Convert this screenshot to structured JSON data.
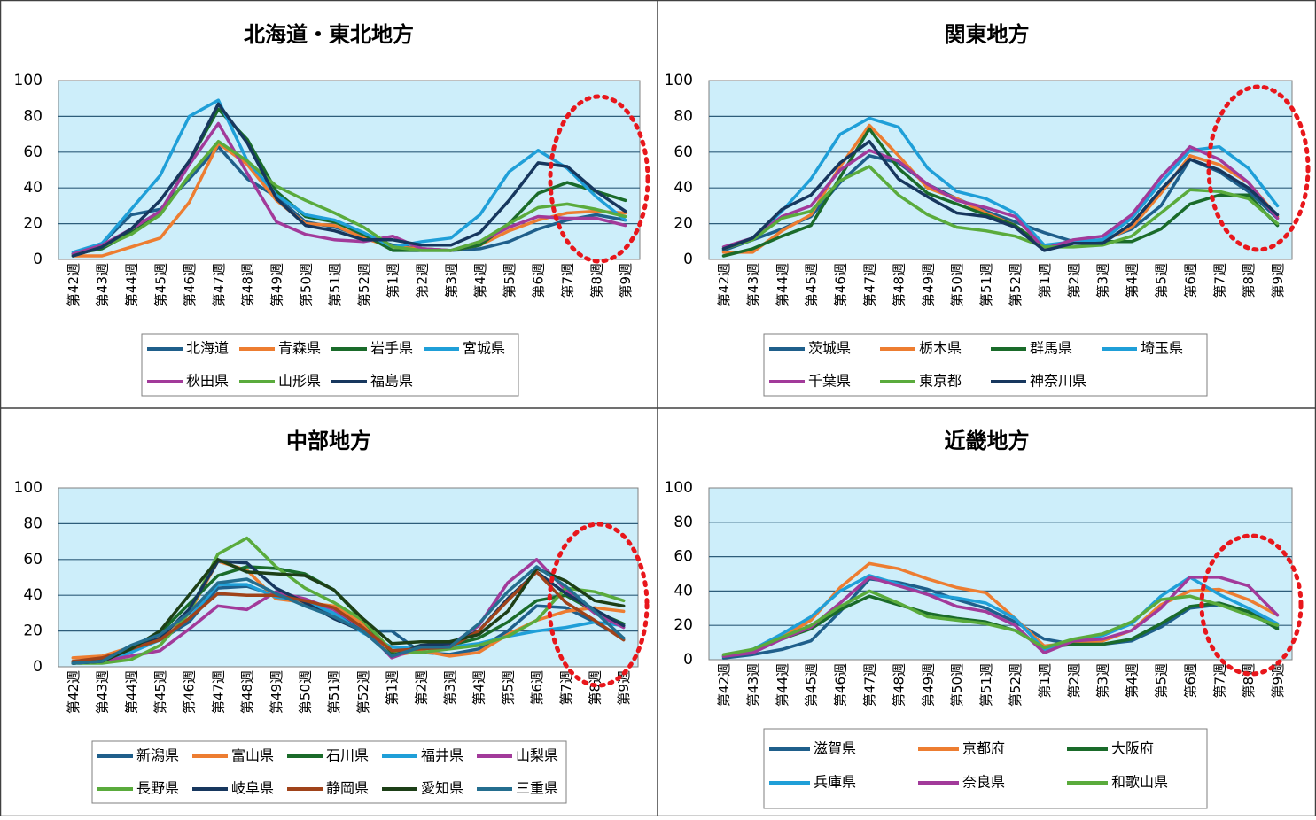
{
  "chart_data": [
    {
      "type": "line",
      "title": "北海道・東北地方",
      "xlabel": "",
      "ylabel": "",
      "ylim": [
        0,
        100
      ],
      "yticks": [
        0,
        20,
        40,
        60,
        80,
        100
      ],
      "grid": true,
      "legend": "bottom",
      "highlight_ellipse": "around 第7週–第9週",
      "categories": [
        "第42週",
        "第43週",
        "第44週",
        "第45週",
        "第46週",
        "第47週",
        "第48週",
        "第49週",
        "第50週",
        "第51週",
        "第52週",
        "第1週",
        "第2週",
        "第3週",
        "第4週",
        "第5週",
        "第6週",
        "第7週",
        "第8週",
        "第9週"
      ],
      "series": [
        {
          "name": "北海道",
          "color": "#1f5f8b",
          "values": [
            3,
            9,
            25,
            28,
            45,
            63,
            45,
            35,
            21,
            18,
            13,
            8,
            6,
            5,
            6,
            10,
            17,
            22,
            25,
            22
          ]
        },
        {
          "name": "青森県",
          "color": "#ed7d31",
          "values": [
            2,
            2,
            7,
            12,
            32,
            65,
            53,
            33,
            20,
            19,
            12,
            7,
            6,
            5,
            8,
            16,
            22,
            26,
            27,
            26
          ]
        },
        {
          "name": "岩手県",
          "color": "#1a6b2a",
          "values": [
            3,
            6,
            15,
            25,
            55,
            84,
            67,
            38,
            24,
            21,
            14,
            5,
            5,
            5,
            8,
            20,
            37,
            43,
            38,
            33
          ]
        },
        {
          "name": "宮城県",
          "color": "#1f9fd8",
          "values": [
            4,
            9,
            28,
            47,
            80,
            89,
            55,
            36,
            25,
            22,
            15,
            7,
            10,
            12,
            25,
            49,
            61,
            51,
            35,
            22
          ]
        },
        {
          "name": "秋田県",
          "color": "#a23a9a",
          "values": [
            3,
            8,
            17,
            27,
            53,
            76,
            48,
            21,
            14,
            11,
            10,
            13,
            6,
            5,
            10,
            18,
            24,
            23,
            23,
            19
          ]
        },
        {
          "name": "山形県",
          "color": "#5aab3c",
          "values": [
            2,
            7,
            14,
            25,
            47,
            66,
            55,
            41,
            33,
            26,
            18,
            7,
            5,
            5,
            10,
            20,
            29,
            31,
            28,
            24
          ]
        },
        {
          "name": "福島県",
          "color": "#17375e",
          "values": [
            2,
            7,
            17,
            33,
            55,
            87,
            65,
            34,
            19,
            16,
            11,
            11,
            8,
            8,
            15,
            33,
            54,
            52,
            38,
            27
          ]
        }
      ]
    },
    {
      "type": "line",
      "title": "関東地方",
      "xlabel": "",
      "ylabel": "",
      "ylim": [
        0,
        100
      ],
      "yticks": [
        0,
        20,
        40,
        60,
        80,
        100
      ],
      "grid": true,
      "legend": "bottom",
      "highlight_ellipse": "around 第7週–第9週",
      "categories": [
        "第42週",
        "第43週",
        "第44週",
        "第45週",
        "第46週",
        "第47週",
        "第48週",
        "第49週",
        "第50週",
        "第51週",
        "第52週",
        "第1週",
        "第2週",
        "第3週",
        "第4週",
        "第5週",
        "第6週",
        "第7週",
        "第8週",
        "第9週"
      ],
      "series": [
        {
          "name": "茨城県",
          "color": "#1f5f8b",
          "values": [
            5,
            11,
            17,
            24,
            43,
            58,
            54,
            42,
            34,
            27,
            21,
            15,
            10,
            11,
            17,
            30,
            56,
            49,
            38,
            23
          ]
        },
        {
          "name": "栃木県",
          "color": "#ed7d31",
          "values": [
            4,
            4,
            16,
            25,
            52,
            75,
            58,
            40,
            34,
            26,
            19,
            7,
            9,
            10,
            18,
            37,
            58,
            53,
            43,
            24
          ]
        },
        {
          "name": "群馬県",
          "color": "#1a6b2a",
          "values": [
            2,
            6,
            13,
            19,
            46,
            73,
            51,
            37,
            31,
            25,
            19,
            7,
            9,
            10,
            10,
            17,
            31,
            36,
            36,
            19
          ]
        },
        {
          "name": "埼玉県",
          "color": "#1f9fd8",
          "values": [
            6,
            12,
            27,
            45,
            70,
            79,
            74,
            51,
            38,
            34,
            26,
            8,
            10,
            11,
            23,
            43,
            61,
            63,
            51,
            30
          ]
        },
        {
          "name": "千葉県",
          "color": "#a23a9a",
          "values": [
            7,
            12,
            24,
            30,
            50,
            61,
            55,
            42,
            33,
            29,
            24,
            6,
            11,
            13,
            25,
            46,
            63,
            56,
            43,
            23
          ]
        },
        {
          "name": "東京都",
          "color": "#5aab3c",
          "values": [
            6,
            11,
            23,
            27,
            44,
            52,
            36,
            25,
            18,
            16,
            13,
            7,
            7,
            8,
            13,
            26,
            39,
            38,
            34,
            20
          ]
        },
        {
          "name": "神奈川県",
          "color": "#17375e",
          "values": [
            6,
            12,
            28,
            36,
            54,
            66,
            45,
            35,
            26,
            24,
            18,
            5,
            9,
            9,
            20,
            39,
            56,
            50,
            40,
            25
          ]
        }
      ]
    },
    {
      "type": "line",
      "title": "中部地方",
      "xlabel": "",
      "ylabel": "",
      "ylim": [
        0,
        100
      ],
      "yticks": [
        0,
        20,
        40,
        60,
        80,
        100
      ],
      "grid": true,
      "legend": "bottom",
      "highlight_ellipse": "around 第7週–第9週",
      "categories": [
        "第42週",
        "第43週",
        "第44週",
        "第45週",
        "第46週",
        "第47週",
        "第48週",
        "第49週",
        "第50週",
        "第51週",
        "第52週",
        "第1週",
        "第2週",
        "第3週",
        "第4週",
        "第5週",
        "第6週",
        "第7週",
        "第8週",
        "第9週"
      ],
      "series": [
        {
          "name": "新潟県",
          "color": "#1f5f8b",
          "values": [
            3,
            4,
            10,
            15,
            25,
            44,
            45,
            40,
            35,
            30,
            20,
            20,
            8,
            7,
            10,
            20,
            34,
            33,
            25,
            16
          ]
        },
        {
          "name": "富山県",
          "color": "#ed7d31",
          "values": [
            5,
            6,
            11,
            17,
            30,
            59,
            54,
            38,
            36,
            34,
            24,
            6,
            9,
            6,
            8,
            18,
            26,
            31,
            33,
            31
          ]
        },
        {
          "name": "石川県",
          "color": "#1a6b2a",
          "values": [
            2,
            3,
            9,
            19,
            35,
            51,
            56,
            55,
            52,
            43,
            26,
            8,
            12,
            12,
            16,
            25,
            37,
            40,
            31,
            24
          ]
        },
        {
          "name": "福井県",
          "color": "#1f9fd8",
          "values": [
            2,
            3,
            8,
            15,
            27,
            46,
            46,
            39,
            37,
            30,
            19,
            11,
            10,
            11,
            13,
            17,
            20,
            22,
            25,
            23
          ]
        },
        {
          "name": "山梨県",
          "color": "#a23a9a",
          "values": [
            2,
            3,
            6,
            9,
            21,
            34,
            32,
            42,
            38,
            32,
            22,
            5,
            11,
            12,
            23,
            47,
            60,
            43,
            30,
            22
          ]
        },
        {
          "name": "長野県",
          "color": "#5aab3c",
          "values": [
            2,
            2,
            4,
            12,
            30,
            63,
            72,
            56,
            44,
            36,
            26,
            9,
            8,
            10,
            12,
            17,
            26,
            44,
            42,
            37
          ]
        },
        {
          "name": "岐阜県",
          "color": "#17375e",
          "values": [
            2,
            3,
            10,
            16,
            32,
            59,
            58,
            44,
            36,
            27,
            20,
            6,
            12,
            13,
            20,
            38,
            53,
            41,
            32,
            23
          ]
        },
        {
          "name": "静岡県",
          "color": "#a0431a",
          "values": [
            3,
            5,
            10,
            15,
            27,
            41,
            40,
            40,
            37,
            33,
            22,
            9,
            10,
            11,
            20,
            37,
            53,
            36,
            26,
            15
          ]
        },
        {
          "name": "愛知県",
          "color": "#1d3f17",
          "values": [
            2,
            3,
            10,
            20,
            40,
            60,
            53,
            52,
            51,
            43,
            27,
            13,
            14,
            14,
            18,
            31,
            55,
            48,
            37,
            34
          ]
        },
        {
          "name": "三重県",
          "color": "#246e8f",
          "values": [
            2,
            3,
            12,
            18,
            30,
            47,
            49,
            41,
            34,
            28,
            20,
            6,
            11,
            11,
            24,
            42,
            56,
            45,
            31,
            16
          ]
        }
      ]
    },
    {
      "type": "line",
      "title": "近畿地方",
      "xlabel": "",
      "ylabel": "",
      "ylim": [
        0,
        100
      ],
      "yticks": [
        0,
        20,
        40,
        60,
        80,
        100
      ],
      "grid": true,
      "legend": "bottom",
      "highlight_ellipse": "around 第7週–第9週",
      "categories": [
        "第42週",
        "第43週",
        "第44週",
        "第45週",
        "第46週",
        "第47週",
        "第48週",
        "第49週",
        "第50週",
        "第51週",
        "第52週",
        "第1週",
        "第2週",
        "第3週",
        "第4週",
        "第5週",
        "第6週",
        "第7週",
        "第8週",
        "第9週"
      ],
      "series": [
        {
          "name": "滋賀県",
          "color": "#1f5f8b",
          "values": [
            1,
            3,
            6,
            11,
            28,
            47,
            45,
            41,
            35,
            30,
            22,
            12,
            9,
            9,
            11,
            19,
            30,
            32,
            28,
            19
          ]
        },
        {
          "name": "京都府",
          "color": "#ed7d31",
          "values": [
            2,
            5,
            13,
            23,
            42,
            56,
            53,
            47,
            42,
            39,
            24,
            8,
            10,
            11,
            17,
            32,
            40,
            41,
            35,
            26
          ]
        },
        {
          "name": "大阪府",
          "color": "#1a6b2a",
          "values": [
            2,
            6,
            12,
            18,
            29,
            37,
            32,
            27,
            24,
            22,
            17,
            7,
            9,
            9,
            12,
            21,
            31,
            33,
            28,
            18
          ]
        },
        {
          "name": "兵庫県",
          "color": "#1f9fd8",
          "values": [
            2,
            6,
            15,
            25,
            40,
            49,
            44,
            38,
            36,
            33,
            24,
            6,
            11,
            14,
            21,
            37,
            48,
            38,
            30,
            21
          ]
        },
        {
          "name": "奈良県",
          "color": "#a23a9a",
          "values": [
            2,
            4,
            12,
            19,
            33,
            48,
            43,
            38,
            31,
            28,
            20,
            4,
            11,
            12,
            17,
            30,
            48,
            48,
            43,
            26
          ]
        },
        {
          "name": "和歌山県",
          "color": "#5aab3c",
          "values": [
            3,
            6,
            13,
            20,
            31,
            40,
            33,
            25,
            23,
            21,
            17,
            7,
            12,
            15,
            22,
            35,
            37,
            32,
            26,
            20
          ]
        }
      ]
    }
  ]
}
